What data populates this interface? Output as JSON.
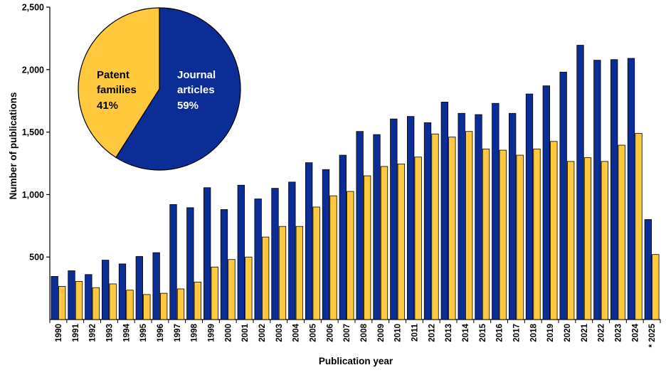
{
  "chart_data": [
    {
      "type": "bar",
      "xlabel": "Publication year",
      "ylabel": "Number of publications",
      "ylim": [
        0,
        2500
      ],
      "y_ticks": [
        "500",
        "1,000",
        "1,500",
        "2,000",
        "2,500"
      ],
      "y_tick_values": [
        500,
        1000,
        1500,
        2000,
        2500
      ],
      "grid": false,
      "legend": "none",
      "categories": [
        "1990",
        "1991",
        "1992",
        "1993",
        "1994",
        "1995",
        "1996",
        "1997",
        "1998",
        "1999",
        "2000",
        "2001",
        "2002",
        "2003",
        "2004",
        "2005",
        "2006",
        "2007",
        "2008",
        "2009",
        "2010",
        "2011",
        "2012",
        "2013",
        "2014",
        "2015",
        "2016",
        "2017",
        "2018",
        "2019",
        "2020",
        "2021",
        "2022",
        "2023",
        "2024",
        "* 2025"
      ],
      "series": [
        {
          "color": "#0B2D96",
          "values": [
            345,
            390,
            360,
            475,
            445,
            505,
            535,
            920,
            895,
            1055,
            880,
            1075,
            965,
            1050,
            1100,
            1255,
            1200,
            1315,
            1505,
            1480,
            1605,
            1625,
            1575,
            1740,
            1650,
            1640,
            1730,
            1650,
            1805,
            1870,
            1980,
            2195,
            2075,
            2080,
            2090,
            800
          ]
        },
        {
          "color": "#FFC83D",
          "values": [
            265,
            305,
            255,
            285,
            235,
            200,
            210,
            245,
            300,
            420,
            480,
            500,
            660,
            745,
            745,
            900,
            990,
            1025,
            1150,
            1225,
            1245,
            1300,
            1485,
            1460,
            1505,
            1365,
            1355,
            1315,
            1365,
            1425,
            1265,
            1295,
            1265,
            1395,
            1490,
            520
          ]
        }
      ]
    },
    {
      "type": "pie",
      "slices": [
        {
          "label_line1": "Journal",
          "label_line2": "articles",
          "percent_label": "59%",
          "value": 59,
          "color": "#0B2D96"
        },
        {
          "label_line1": "Patent",
          "label_line2": "families",
          "percent_label": "41%",
          "value": 41,
          "color": "#FFC83D"
        }
      ]
    }
  ]
}
